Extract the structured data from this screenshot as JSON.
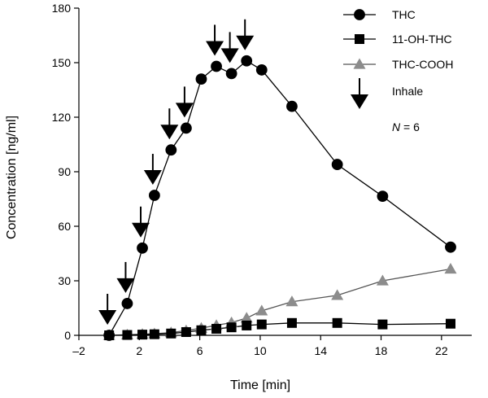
{
  "chart_data": {
    "type": "line",
    "xlabel": "Time [min]",
    "ylabel": "Concentration [ng/ml]",
    "xlim": [
      -2,
      24
    ],
    "ylim": [
      0,
      180
    ],
    "xticks": [
      -2,
      2,
      6,
      10,
      14,
      18,
      22
    ],
    "xtick_labels": [
      "–2",
      "2",
      "6",
      "10",
      "14",
      "18",
      "22"
    ],
    "yticks": [
      0,
      30,
      60,
      90,
      120,
      150,
      180
    ],
    "ytick_labels": [
      "0",
      "30",
      "60",
      "90",
      "120",
      "150",
      "180"
    ],
    "grid": false,
    "legend_position": "top-right",
    "series": [
      {
        "name": "THC",
        "marker": "circle",
        "color": "#000000",
        "x": [
          0,
          1.2,
          2.2,
          3.0,
          4.1,
          5.1,
          6.1,
          7.1,
          8.1,
          9.1,
          10.1,
          12.1,
          15.1,
          18.1,
          22.6
        ],
        "y": [
          0,
          17.5,
          48,
          77,
          102,
          114,
          141,
          148,
          144,
          151,
          146,
          126,
          94,
          76.5,
          48.5
        ]
      },
      {
        "name": "11-OH-THC",
        "marker": "square",
        "color": "#000000",
        "x": [
          0,
          1.2,
          2.2,
          3.0,
          4.1,
          5.1,
          6.1,
          7.1,
          8.1,
          9.1,
          10.1,
          12.1,
          15.1,
          18.1,
          22.6
        ],
        "y": [
          0,
          0.2,
          0.4,
          0.6,
          1.0,
          1.8,
          2.8,
          3.6,
          4.4,
          5.4,
          6.0,
          6.8,
          6.8,
          6.0,
          6.4
        ]
      },
      {
        "name": "THC-COOH",
        "marker": "triangle",
        "color": "#8c8c8c",
        "x": [
          0,
          1.2,
          2.2,
          3.0,
          4.1,
          5.1,
          6.1,
          7.1,
          8.1,
          9.1,
          10.1,
          12.1,
          15.1,
          18.1,
          22.6
        ],
        "y": [
          0,
          0.3,
          0.6,
          0.9,
          1.5,
          2.6,
          4.0,
          5.5,
          7.0,
          9.5,
          13.5,
          18.5,
          22,
          30,
          36.5
        ]
      }
    ],
    "inhale_times": [
      0,
      1.2,
      2.2,
      3.0,
      4.1,
      5.1,
      7.1,
      8.1,
      9.1
    ],
    "legend": [
      {
        "label": "THC",
        "marker": "circle"
      },
      {
        "label": "11-OH-THC",
        "marker": "square"
      },
      {
        "label": "THC-COOH",
        "marker": "triangle"
      },
      {
        "label": "Inhale",
        "marker": "arrow"
      }
    ],
    "annotation": {
      "italic": "N",
      "text": " = 6"
    }
  }
}
